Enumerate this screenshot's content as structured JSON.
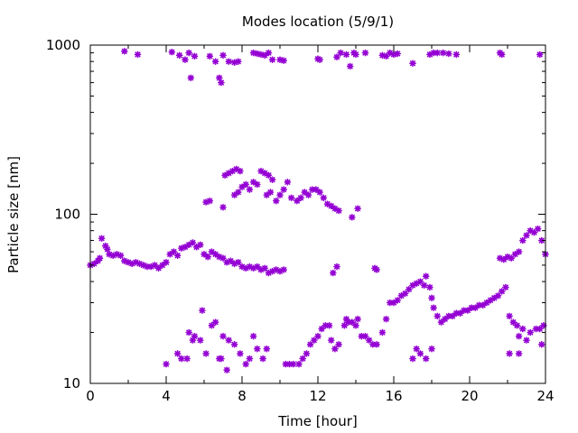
{
  "chart_data": {
    "type": "scatter",
    "title": "Modes location (5/9/1)",
    "xlabel": "Time [hour]",
    "ylabel": "Particle size [nm]",
    "xlim": [
      0,
      24
    ],
    "ylim": [
      10,
      1000
    ],
    "yscale": "log",
    "grid": false,
    "legend": "none",
    "marker_color": "#9400d3",
    "x_ticks": [
      "0",
      "4",
      "8",
      "12",
      "16",
      "20",
      "24"
    ],
    "y_ticks": [
      "10",
      "100",
      "1000"
    ],
    "series": [
      {
        "values": [
          [
            1.8,
            920
          ],
          [
            2.5,
            880
          ],
          [
            4.3,
            910
          ],
          [
            4.7,
            870
          ],
          [
            5.0,
            820
          ],
          [
            5.2,
            900
          ],
          [
            5.3,
            640
          ],
          [
            5.5,
            860
          ],
          [
            6.3,
            860
          ],
          [
            6.6,
            800
          ],
          [
            6.8,
            640
          ],
          [
            6.9,
            600
          ],
          [
            7.0,
            870
          ],
          [
            7.3,
            800
          ],
          [
            7.6,
            790
          ],
          [
            7.8,
            800
          ],
          [
            8.6,
            900
          ],
          [
            8.8,
            890
          ],
          [
            9.0,
            880
          ],
          [
            9.2,
            870
          ],
          [
            9.4,
            900
          ],
          [
            9.6,
            820
          ],
          [
            10.0,
            820
          ],
          [
            10.2,
            810
          ],
          [
            12.0,
            830
          ],
          [
            12.1,
            820
          ],
          [
            13.0,
            850
          ],
          [
            13.2,
            900
          ],
          [
            13.5,
            880
          ],
          [
            13.7,
            750
          ],
          [
            13.9,
            900
          ],
          [
            14.0,
            880
          ],
          [
            14.5,
            900
          ],
          [
            15.4,
            870
          ],
          [
            15.6,
            860
          ],
          [
            15.8,
            900
          ],
          [
            16.0,
            880
          ],
          [
            16.2,
            890
          ],
          [
            17.0,
            780
          ],
          [
            17.9,
            880
          ],
          [
            18.1,
            900
          ],
          [
            18.3,
            900
          ],
          [
            18.6,
            900
          ],
          [
            18.9,
            890
          ],
          [
            19.3,
            880
          ],
          [
            21.6,
            900
          ],
          [
            21.7,
            880
          ],
          [
            23.7,
            880
          ],
          [
            6.1,
            118
          ],
          [
            6.3,
            120
          ],
          [
            7.0,
            110
          ],
          [
            7.1,
            170
          ],
          [
            7.3,
            175
          ],
          [
            7.5,
            180
          ],
          [
            7.7,
            185
          ],
          [
            7.9,
            180
          ],
          [
            7.6,
            130
          ],
          [
            7.8,
            135
          ],
          [
            8.0,
            145
          ],
          [
            8.2,
            150
          ],
          [
            8.4,
            140
          ],
          [
            8.6,
            155
          ],
          [
            8.8,
            150
          ],
          [
            9.0,
            180
          ],
          [
            9.2,
            175
          ],
          [
            9.4,
            170
          ],
          [
            9.6,
            160
          ],
          [
            9.3,
            130
          ],
          [
            9.5,
            135
          ],
          [
            9.8,
            120
          ],
          [
            10.0,
            130
          ],
          [
            10.2,
            140
          ],
          [
            10.4,
            155
          ],
          [
            10.6,
            125
          ],
          [
            10.9,
            120
          ],
          [
            11.1,
            125
          ],
          [
            11.3,
            135
          ],
          [
            11.5,
            130
          ],
          [
            11.7,
            140
          ],
          [
            11.9,
            140
          ],
          [
            12.1,
            135
          ],
          [
            12.3,
            125
          ],
          [
            12.5,
            115
          ],
          [
            12.7,
            112
          ],
          [
            12.9,
            108
          ],
          [
            13.1,
            105
          ],
          [
            13.8,
            96
          ],
          [
            14.1,
            108
          ],
          [
            0.0,
            50
          ],
          [
            0.2,
            51
          ],
          [
            0.4,
            53
          ],
          [
            0.5,
            55
          ],
          [
            0.6,
            72
          ],
          [
            0.8,
            65
          ],
          [
            0.9,
            62
          ],
          [
            1.0,
            58
          ],
          [
            1.2,
            57
          ],
          [
            1.4,
            58
          ],
          [
            1.6,
            57
          ],
          [
            1.8,
            53
          ],
          [
            2.0,
            52
          ],
          [
            2.2,
            51
          ],
          [
            2.4,
            52
          ],
          [
            2.6,
            51
          ],
          [
            2.8,
            50
          ],
          [
            3.0,
            49
          ],
          [
            3.2,
            49
          ],
          [
            3.4,
            50
          ],
          [
            3.6,
            48
          ],
          [
            3.8,
            50
          ],
          [
            4.0,
            52
          ],
          [
            4.2,
            58
          ],
          [
            4.4,
            60
          ],
          [
            4.6,
            57
          ],
          [
            4.8,
            63
          ],
          [
            5.0,
            64
          ],
          [
            5.2,
            66
          ],
          [
            5.4,
            68
          ],
          [
            5.6,
            64
          ],
          [
            5.8,
            66
          ],
          [
            6.0,
            58
          ],
          [
            6.2,
            56
          ],
          [
            6.4,
            60
          ],
          [
            6.6,
            58
          ],
          [
            6.8,
            56
          ],
          [
            7.0,
            55
          ],
          [
            7.2,
            52
          ],
          [
            7.4,
            53
          ],
          [
            7.6,
            51
          ],
          [
            7.8,
            52
          ],
          [
            8.0,
            49
          ],
          [
            8.2,
            48
          ],
          [
            8.4,
            49
          ],
          [
            8.6,
            48
          ],
          [
            8.8,
            49
          ],
          [
            9.0,
            47
          ],
          [
            9.2,
            48
          ],
          [
            9.4,
            45
          ],
          [
            9.6,
            46
          ],
          [
            9.8,
            47
          ],
          [
            10.0,
            46
          ],
          [
            10.2,
            47
          ],
          [
            12.8,
            45
          ],
          [
            13.0,
            49
          ],
          [
            15.0,
            48
          ],
          [
            15.1,
            47
          ],
          [
            4.0,
            13
          ],
          [
            4.6,
            15
          ],
          [
            4.8,
            14
          ],
          [
            5.1,
            14
          ],
          [
            5.2,
            20
          ],
          [
            5.4,
            18
          ],
          [
            5.5,
            19
          ],
          [
            5.8,
            18
          ],
          [
            5.9,
            27
          ],
          [
            6.1,
            15
          ],
          [
            6.4,
            22
          ],
          [
            6.6,
            23
          ],
          [
            6.8,
            14
          ],
          [
            6.9,
            14
          ],
          [
            7.0,
            19
          ],
          [
            7.2,
            12
          ],
          [
            7.3,
            18
          ],
          [
            7.6,
            17
          ],
          [
            7.9,
            15
          ],
          [
            8.2,
            13
          ],
          [
            8.4,
            14
          ],
          [
            8.6,
            19
          ],
          [
            8.8,
            16
          ],
          [
            9.1,
            14
          ],
          [
            9.3,
            16
          ],
          [
            10.3,
            13
          ],
          [
            10.5,
            13
          ],
          [
            10.7,
            13
          ],
          [
            11.0,
            13
          ],
          [
            11.2,
            14
          ],
          [
            11.4,
            15
          ],
          [
            11.6,
            17
          ],
          [
            11.8,
            18
          ],
          [
            12.0,
            19
          ],
          [
            12.2,
            21
          ],
          [
            12.4,
            22
          ],
          [
            12.6,
            22
          ],
          [
            12.7,
            18
          ],
          [
            12.9,
            16
          ],
          [
            13.1,
            17
          ],
          [
            13.4,
            22
          ],
          [
            13.5,
            24
          ],
          [
            13.6,
            23
          ],
          [
            13.8,
            23
          ],
          [
            14.0,
            22
          ],
          [
            14.1,
            24
          ],
          [
            14.3,
            19
          ],
          [
            14.5,
            19
          ],
          [
            14.7,
            18
          ],
          [
            14.9,
            17
          ],
          [
            15.1,
            17
          ],
          [
            15.4,
            20
          ],
          [
            15.6,
            24
          ],
          [
            15.8,
            30
          ],
          [
            16.0,
            30
          ],
          [
            16.2,
            31
          ],
          [
            16.4,
            33
          ],
          [
            16.6,
            34
          ],
          [
            16.8,
            36
          ],
          [
            17.0,
            38
          ],
          [
            17.2,
            39
          ],
          [
            17.4,
            40
          ],
          [
            17.6,
            38
          ],
          [
            17.7,
            43
          ],
          [
            17.9,
            37
          ],
          [
            18.0,
            32
          ],
          [
            18.1,
            28
          ],
          [
            18.3,
            25
          ],
          [
            18.5,
            23
          ],
          [
            18.7,
            24
          ],
          [
            18.9,
            25
          ],
          [
            19.1,
            25
          ],
          [
            19.3,
            26
          ],
          [
            19.5,
            26
          ],
          [
            19.7,
            27
          ],
          [
            19.9,
            27
          ],
          [
            20.1,
            28
          ],
          [
            20.3,
            28
          ],
          [
            20.5,
            29
          ],
          [
            20.7,
            29
          ],
          [
            20.9,
            30
          ],
          [
            21.1,
            31
          ],
          [
            21.3,
            32
          ],
          [
            21.5,
            33
          ],
          [
            21.7,
            35
          ],
          [
            21.9,
            37
          ],
          [
            17.0,
            14
          ],
          [
            17.2,
            16
          ],
          [
            17.4,
            15
          ],
          [
            17.7,
            14
          ],
          [
            18.0,
            16
          ],
          [
            21.6,
            55
          ],
          [
            21.8,
            54
          ],
          [
            22.0,
            56
          ],
          [
            22.2,
            55
          ],
          [
            22.4,
            58
          ],
          [
            22.6,
            60
          ],
          [
            22.8,
            70
          ],
          [
            23.0,
            75
          ],
          [
            23.2,
            80
          ],
          [
            23.4,
            78
          ],
          [
            23.6,
            82
          ],
          [
            23.8,
            70
          ],
          [
            24.0,
            58
          ],
          [
            22.1,
            25
          ],
          [
            22.3,
            23
          ],
          [
            22.5,
            22
          ],
          [
            22.6,
            19
          ],
          [
            22.8,
            21
          ],
          [
            23.0,
            18
          ],
          [
            23.2,
            20
          ],
          [
            23.5,
            21
          ],
          [
            23.7,
            21
          ],
          [
            23.9,
            22
          ],
          [
            23.8,
            17
          ],
          [
            22.1,
            15
          ],
          [
            22.6,
            15
          ]
        ]
      }
    ]
  }
}
